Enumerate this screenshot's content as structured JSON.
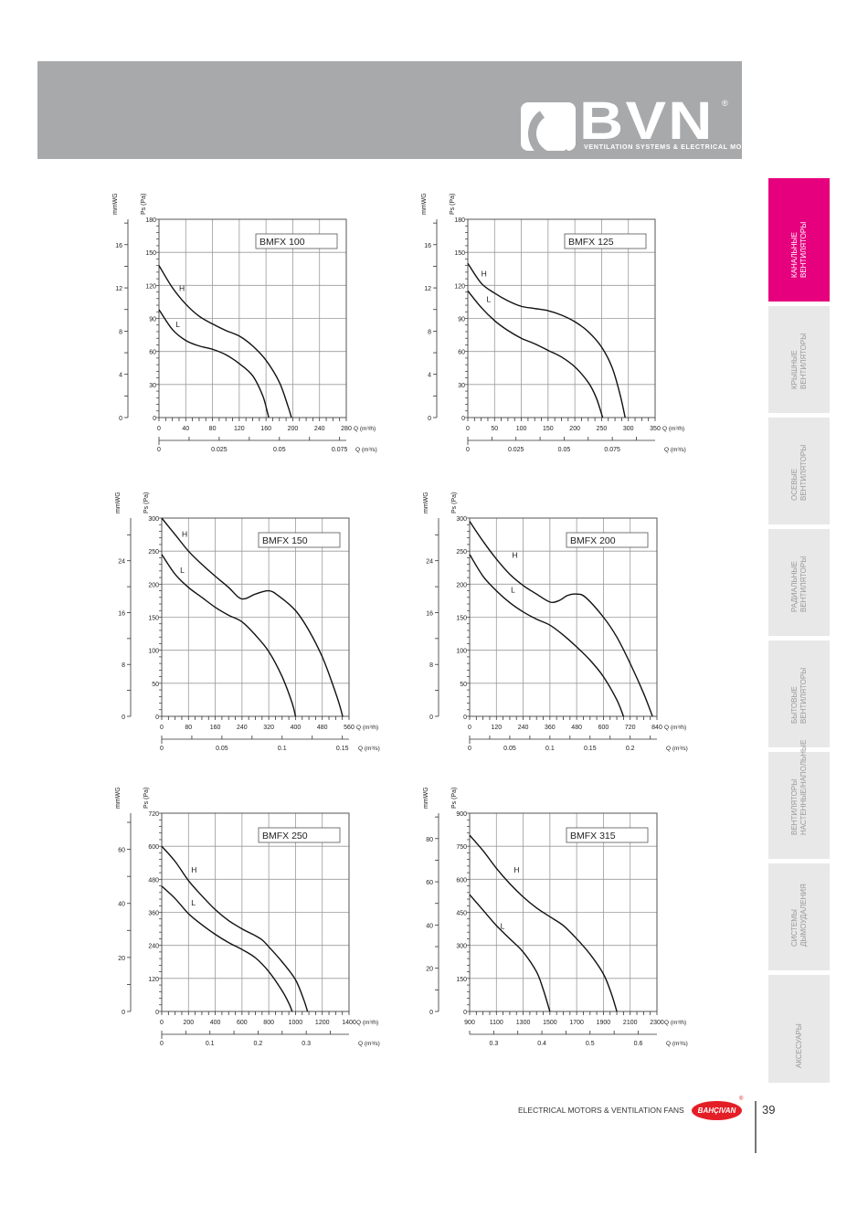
{
  "header": {
    "logo_text": "BVN",
    "logo_reg": "®",
    "tagline": "VENTILATION SYSTEMS & ELECTRICAL MOTORS",
    "band_color": "#a8a9ab"
  },
  "sidebar": {
    "active_color": "#e6007e",
    "items": [
      {
        "label": "Канальные\nвентиляторы",
        "active": true
      },
      {
        "label": "Крышные\nвентиляторы",
        "active": false
      },
      {
        "label": "Осевые\nвентиляторы",
        "active": false
      },
      {
        "label": "Радиальные\nвентиляторы",
        "active": false
      },
      {
        "label": "Бытовые\nвентиляторы",
        "active": false
      },
      {
        "label": "Вентиляторы\nнастенные/напольные",
        "active": false
      },
      {
        "label": "Системы\nдымоудаления",
        "active": false
      },
      {
        "label": "Аксесуары",
        "active": false
      }
    ]
  },
  "footer": {
    "text": "ELECTRICAL MOTORS & VENTILATION FANS",
    "brand": "BAHÇIVAN",
    "brand_reg": "®",
    "page_number": "39"
  },
  "chart_data": [
    {
      "type": "line",
      "title": "BMFX 100",
      "xlabel": "Q (m³/h)",
      "x2label": "Q (m³/s)",
      "ylabel": "Ps (Pa)",
      "y2label": "mmWG",
      "x_range": [
        0,
        280
      ],
      "x_ticks": [
        0,
        40,
        80,
        120,
        160,
        200,
        240,
        280
      ],
      "y_range": [
        0,
        180
      ],
      "y_ticks": [
        0,
        30,
        60,
        90,
        120,
        150,
        180
      ],
      "mmwg_ticks": [
        0,
        4,
        8,
        12,
        16
      ],
      "m3s_ticks": [
        0,
        0.025,
        0.05,
        0.075
      ],
      "grid": true,
      "series": [
        {
          "name": "H",
          "label_at": [
            30,
            115
          ],
          "points": [
            [
              0,
              138
            ],
            [
              20,
              118
            ],
            [
              40,
              103
            ],
            [
              60,
              92
            ],
            [
              80,
              85
            ],
            [
              100,
              79
            ],
            [
              120,
              74
            ],
            [
              140,
              65
            ],
            [
              160,
              52
            ],
            [
              180,
              32
            ],
            [
              193,
              10
            ],
            [
              198,
              0
            ]
          ]
        },
        {
          "name": "L",
          "label_at": [
            25,
            82
          ],
          "points": [
            [
              0,
              98
            ],
            [
              20,
              80
            ],
            [
              40,
              70
            ],
            [
              60,
              65
            ],
            [
              80,
              62
            ],
            [
              100,
              57
            ],
            [
              120,
              49
            ],
            [
              140,
              38
            ],
            [
              155,
              20
            ],
            [
              162,
              5
            ],
            [
              164,
              0
            ]
          ]
        }
      ]
    },
    {
      "type": "line",
      "title": "BMFX 125",
      "xlabel": "Q (m³/h)",
      "x2label": "Q (m³/s)",
      "ylabel": "Ps (Pa)",
      "y2label": "mmWG",
      "x_range": [
        0,
        350
      ],
      "x_ticks": [
        0,
        50,
        100,
        150,
        200,
        250,
        300,
        350
      ],
      "y_range": [
        0,
        180
      ],
      "y_ticks": [
        0,
        30,
        60,
        90,
        120,
        150,
        180
      ],
      "mmwg_ticks": [
        0,
        4,
        8,
        12,
        16
      ],
      "m3s_ticks": [
        0,
        0.025,
        0.05,
        0.075
      ],
      "grid": true,
      "series": [
        {
          "name": "H",
          "label_at": [
            25,
            128
          ],
          "points": [
            [
              0,
              140
            ],
            [
              25,
              122
            ],
            [
              50,
              113
            ],
            [
              75,
              106
            ],
            [
              100,
              101
            ],
            [
              125,
              99
            ],
            [
              150,
              97
            ],
            [
              175,
              93
            ],
            [
              200,
              87
            ],
            [
              225,
              78
            ],
            [
              250,
              64
            ],
            [
              270,
              45
            ],
            [
              285,
              20
            ],
            [
              294,
              0
            ]
          ]
        },
        {
          "name": "L",
          "label_at": [
            35,
            105
          ],
          "points": [
            [
              0,
              115
            ],
            [
              25,
              100
            ],
            [
              50,
              88
            ],
            [
              75,
              79
            ],
            [
              100,
              72
            ],
            [
              125,
              67
            ],
            [
              150,
              61
            ],
            [
              175,
              55
            ],
            [
              200,
              46
            ],
            [
              225,
              32
            ],
            [
              240,
              18
            ],
            [
              252,
              0
            ]
          ]
        }
      ]
    },
    {
      "type": "line",
      "title": "BMFX 150",
      "xlabel": "Q (m³/h)",
      "x2label": "Q (m³/s)",
      "ylabel": "Ps (Pa)",
      "y2label": "mmWG",
      "x_range": [
        0,
        560
      ],
      "x_ticks": [
        0,
        80,
        160,
        240,
        320,
        400,
        480,
        560
      ],
      "y_range": [
        0,
        300
      ],
      "y_ticks": [
        0,
        50,
        100,
        150,
        200,
        250,
        300
      ],
      "mmwg_ticks": [
        0,
        8,
        16,
        24
      ],
      "m3s_ticks": [
        0,
        0.05,
        0.1,
        0.15
      ],
      "grid": true,
      "series": [
        {
          "name": "H",
          "label_at": [
            60,
            272
          ],
          "points": [
            [
              0,
              300
            ],
            [
              40,
              275
            ],
            [
              80,
              250
            ],
            [
              120,
              230
            ],
            [
              160,
              212
            ],
            [
              200,
              195
            ],
            [
              230,
              180
            ],
            [
              250,
              178
            ],
            [
              280,
              185
            ],
            [
              320,
              190
            ],
            [
              350,
              182
            ],
            [
              400,
              160
            ],
            [
              440,
              130
            ],
            [
              480,
              90
            ],
            [
              510,
              50
            ],
            [
              530,
              20
            ],
            [
              541,
              0
            ]
          ]
        },
        {
          "name": "L",
          "label_at": [
            55,
            217
          ],
          "points": [
            [
              0,
              245
            ],
            [
              40,
              215
            ],
            [
              80,
              195
            ],
            [
              120,
              180
            ],
            [
              160,
              165
            ],
            [
              200,
              153
            ],
            [
              240,
              143
            ],
            [
              280,
              123
            ],
            [
              320,
              98
            ],
            [
              360,
              60
            ],
            [
              390,
              20
            ],
            [
              400,
              0
            ]
          ]
        }
      ]
    },
    {
      "type": "line",
      "title": "BMFX 200",
      "xlabel": "Q (m³/h)",
      "x2label": "Q (m³/s)",
      "ylabel": "Ps (Pa)",
      "y2label": "mmWG",
      "x_range": [
        0,
        840
      ],
      "x_ticks": [
        0,
        120,
        240,
        360,
        480,
        600,
        720,
        840
      ],
      "y_range": [
        0,
        300
      ],
      "y_ticks": [
        0,
        50,
        100,
        150,
        200,
        250,
        300
      ],
      "mmwg_ticks": [
        0,
        8,
        16,
        24
      ],
      "m3s_ticks": [
        0,
        0.05,
        0.1,
        0.15,
        0.2
      ],
      "grid": true,
      "series": [
        {
          "name": "H",
          "label_at": [
            190,
            240
          ],
          "points": [
            [
              0,
              295
            ],
            [
              60,
              265
            ],
            [
              120,
              238
            ],
            [
              180,
              215
            ],
            [
              240,
              198
            ],
            [
              300,
              185
            ],
            [
              360,
              173
            ],
            [
              400,
              175
            ],
            [
              440,
              183
            ],
            [
              480,
              185
            ],
            [
              520,
              180
            ],
            [
              600,
              150
            ],
            [
              660,
              120
            ],
            [
              720,
              80
            ],
            [
              780,
              35
            ],
            [
              820,
              0
            ]
          ]
        },
        {
          "name": "L",
          "label_at": [
            185,
            187
          ],
          "points": [
            [
              0,
              245
            ],
            [
              60,
              212
            ],
            [
              120,
              190
            ],
            [
              180,
              172
            ],
            [
              240,
              158
            ],
            [
              300,
              147
            ],
            [
              360,
              138
            ],
            [
              420,
              123
            ],
            [
              480,
              105
            ],
            [
              540,
              85
            ],
            [
              600,
              60
            ],
            [
              660,
              25
            ],
            [
              690,
              0
            ]
          ]
        }
      ]
    },
    {
      "type": "line",
      "title": "BMFX 250",
      "xlabel": "Q (m³/h)",
      "x2label": "Q (m³/s)",
      "ylabel": "Ps (Pa)",
      "y2label": "mmWG",
      "x_range": [
        0,
        1400
      ],
      "x_ticks": [
        0,
        200,
        400,
        600,
        800,
        1000,
        1200,
        1400
      ],
      "y_range": [
        0,
        720
      ],
      "y_ticks": [
        0,
        120,
        240,
        360,
        480,
        600,
        720
      ],
      "mmwg_ticks": [
        0,
        20,
        40,
        60
      ],
      "m3s_ticks": [
        0,
        0.1,
        0.2,
        0.3
      ],
      "grid": true,
      "series": [
        {
          "name": "H",
          "label_at": [
            220,
            505
          ],
          "points": [
            [
              0,
              600
            ],
            [
              100,
              545
            ],
            [
              200,
              475
            ],
            [
              300,
              420
            ],
            [
              400,
              370
            ],
            [
              500,
              330
            ],
            [
              600,
              300
            ],
            [
              700,
              275
            ],
            [
              750,
              260
            ],
            [
              800,
              235
            ],
            [
              900,
              180
            ],
            [
              1000,
              115
            ],
            [
              1060,
              45
            ],
            [
              1090,
              0
            ]
          ]
        },
        {
          "name": "L",
          "label_at": [
            220,
            385
          ],
          "points": [
            [
              0,
              455
            ],
            [
              100,
              410
            ],
            [
              200,
              355
            ],
            [
              300,
              315
            ],
            [
              400,
              280
            ],
            [
              500,
              250
            ],
            [
              600,
              225
            ],
            [
              700,
              195
            ],
            [
              800,
              145
            ],
            [
              900,
              75
            ],
            [
              950,
              30
            ],
            [
              975,
              0
            ]
          ]
        }
      ]
    },
    {
      "type": "line",
      "title": "BMFX 315",
      "xlabel": "Q (m³/h)",
      "x2label": "Q (m³/s)",
      "ylabel": "Ps (Pa)",
      "y2label": "mmWG",
      "x_range": [
        900,
        2300
      ],
      "x_ticks": [
        900,
        1100,
        1300,
        1500,
        1700,
        1900,
        2100,
        2300
      ],
      "y_range": [
        0,
        900
      ],
      "y_ticks": [
        0,
        150,
        300,
        450,
        600,
        750,
        900
      ],
      "mmwg_ticks": [
        0,
        20,
        40,
        60,
        80
      ],
      "m3s_ticks": [
        0.3,
        0.4,
        0.5,
        0.6
      ],
      "grid": true,
      "series": [
        {
          "name": "H",
          "label_at": [
            1230,
            630
          ],
          "points": [
            [
              900,
              800
            ],
            [
              1000,
              730
            ],
            [
              1100,
              650
            ],
            [
              1200,
              580
            ],
            [
              1300,
              520
            ],
            [
              1400,
              470
            ],
            [
              1500,
              430
            ],
            [
              1600,
              390
            ],
            [
              1700,
              330
            ],
            [
              1800,
              260
            ],
            [
              1900,
              170
            ],
            [
              1960,
              80
            ],
            [
              2000,
              0
            ]
          ]
        },
        {
          "name": "L",
          "label_at": [
            1130,
            375
          ],
          "points": [
            [
              900,
              530
            ],
            [
              1000,
              460
            ],
            [
              1100,
              390
            ],
            [
              1200,
              330
            ],
            [
              1300,
              270
            ],
            [
              1400,
              180
            ],
            [
              1450,
              100
            ],
            [
              1490,
              20
            ],
            [
              1500,
              0
            ]
          ]
        }
      ]
    }
  ]
}
